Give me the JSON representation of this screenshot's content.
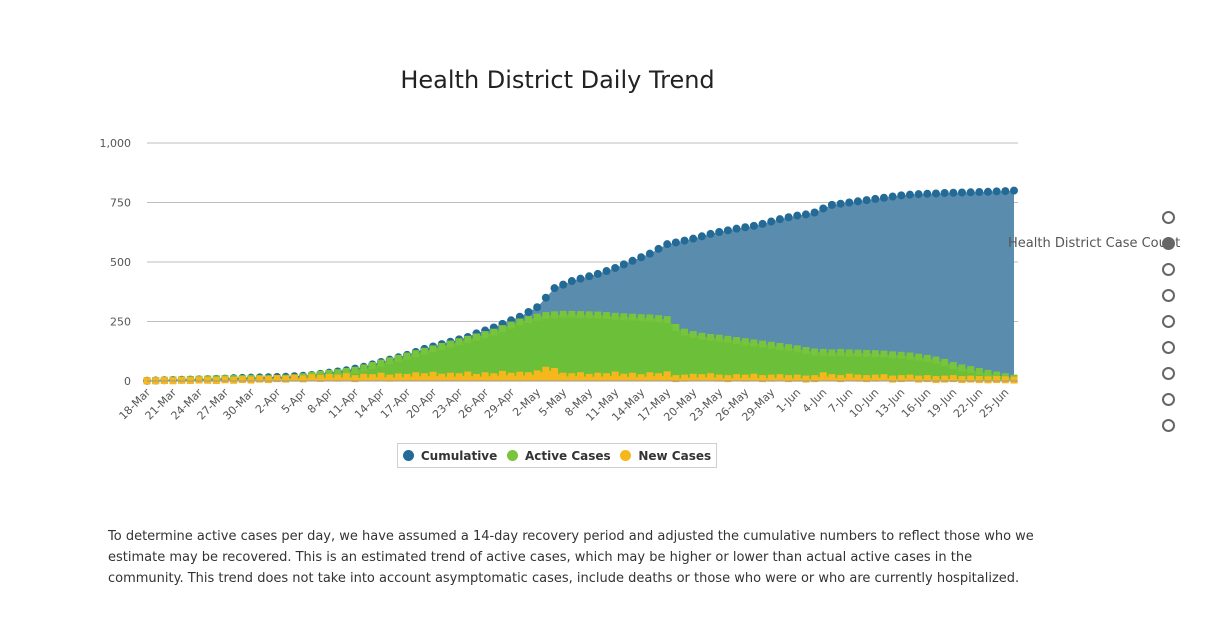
{
  "chart_data": {
    "type": "area",
    "title": "Health District Daily Trend",
    "xlabel": "",
    "ylabel": "",
    "ylim": [
      0,
      1000
    ],
    "yticks": [
      "0",
      "250",
      "500",
      "750",
      "1,000"
    ],
    "ytick_values": [
      0,
      250,
      500,
      750,
      1000
    ],
    "x_tick_labels": [
      "18-Mar",
      "21-Mar",
      "24-Mar",
      "27-Mar",
      "30-Mar",
      "2-Apr",
      "5-Apr",
      "8-Apr",
      "11-Apr",
      "14-Apr",
      "17-Apr",
      "20-Apr",
      "23-Apr",
      "26-Apr",
      "29-Apr",
      "2-May",
      "5-May",
      "8-May",
      "11-May",
      "14-May",
      "17-May",
      "20-May",
      "23-May",
      "26-May",
      "29-May",
      "1-Jun",
      "4-Jun",
      "7-Jun",
      "10-Jun",
      "13-Jun",
      "16-Jun",
      "19-Jun",
      "22-Jun",
      "25-Jun"
    ],
    "start_label": "18-Mar",
    "num_days": 101,
    "legend_position": "bottom",
    "grid": true,
    "series": [
      {
        "name": "Cumulative",
        "color": "#236a96",
        "fill": "#5a8cae",
        "values": [
          1,
          2,
          3,
          4,
          5,
          6,
          7,
          8,
          9,
          10,
          12,
          13,
          14,
          15,
          16,
          17,
          18,
          20,
          22,
          25,
          30,
          35,
          40,
          45,
          52,
          60,
          70,
          80,
          90,
          100,
          110,
          122,
          135,
          145,
          155,
          165,
          175,
          185,
          200,
          212,
          225,
          240,
          255,
          270,
          290,
          310,
          350,
          390,
          405,
          420,
          430,
          440,
          450,
          462,
          475,
          490,
          505,
          520,
          535,
          555,
          575,
          582,
          590,
          598,
          608,
          618,
          626,
          633,
          640,
          646,
          652,
          660,
          670,
          680,
          688,
          695,
          700,
          708,
          725,
          740,
          745,
          750,
          755,
          760,
          765,
          770,
          775,
          780,
          783,
          785,
          787,
          788,
          790,
          791,
          792,
          793,
          794,
          795,
          797,
          798,
          800
        ]
      },
      {
        "name": "Active Cases",
        "color": "#78c43c",
        "fill": "#6cbf38",
        "values": [
          1,
          2,
          3,
          4,
          5,
          6,
          7,
          8,
          9,
          10,
          10,
          10,
          11,
          11,
          11,
          11,
          12,
          14,
          18,
          24,
          28,
          32,
          35,
          40,
          45,
          55,
          65,
          75,
          85,
          95,
          105,
          115,
          125,
          135,
          145,
          155,
          165,
          175,
          185,
          195,
          205,
          220,
          235,
          248,
          258,
          268,
          275,
          278,
          280,
          280,
          279,
          278,
          277,
          275,
          272,
          270,
          268,
          266,
          265,
          262,
          258,
          225,
          205,
          195,
          188,
          183,
          180,
          175,
          170,
          165,
          160,
          155,
          150,
          145,
          140,
          135,
          128,
          122,
          120,
          118,
          120,
          118,
          117,
          116,
          115,
          113,
          110,
          108,
          105,
          100,
          95,
          88,
          78,
          65,
          55,
          48,
          40,
          32,
          25,
          18,
          12
        ]
      },
      {
        "name": "New Cases",
        "color": "#f5b71b",
        "fill": "#f5b71b",
        "values": [
          1,
          1,
          2,
          1,
          3,
          2,
          4,
          3,
          2,
          5,
          3,
          6,
          4,
          8,
          6,
          10,
          8,
          12,
          9,
          14,
          11,
          15,
          12,
          18,
          10,
          16,
          14,
          20,
          12,
          17,
          15,
          22,
          18,
          24,
          16,
          20,
          18,
          25,
          15,
          22,
          18,
          28,
          20,
          24,
          22,
          30,
          45,
          40,
          20,
          18,
          22,
          15,
          20,
          18,
          25,
          16,
          20,
          14,
          22,
          18,
          26,
          10,
          12,
          16,
          14,
          18,
          12,
          10,
          14,
          12,
          16,
          10,
          12,
          14,
          10,
          12,
          8,
          10,
          22,
          14,
          10,
          16,
          12,
          10,
          12,
          14,
          8,
          10,
          12,
          8,
          10,
          6,
          8,
          10,
          6,
          8,
          6,
          5,
          6,
          5,
          4
        ]
      }
    ]
  },
  "legend": [
    {
      "name": "Cumulative",
      "color": "#236a96"
    },
    {
      "name": "Active Cases",
      "color": "#78c43c"
    },
    {
      "name": "New Cases",
      "color": "#f5b71b"
    }
  ],
  "side_label": "Health District Case Count",
  "pager": {
    "count": 9,
    "active_index": 1
  },
  "footnote": "To determine active cases per day, we have assumed a 14-day recovery period and adjusted the cumulative numbers to reflect those who we estimate may be recovered. This is an estimated trend of active cases, which may be higher or lower than actual active cases in the community. This trend does not take into account asymptomatic cases, include deaths or those who were or who are currently hospitalized."
}
